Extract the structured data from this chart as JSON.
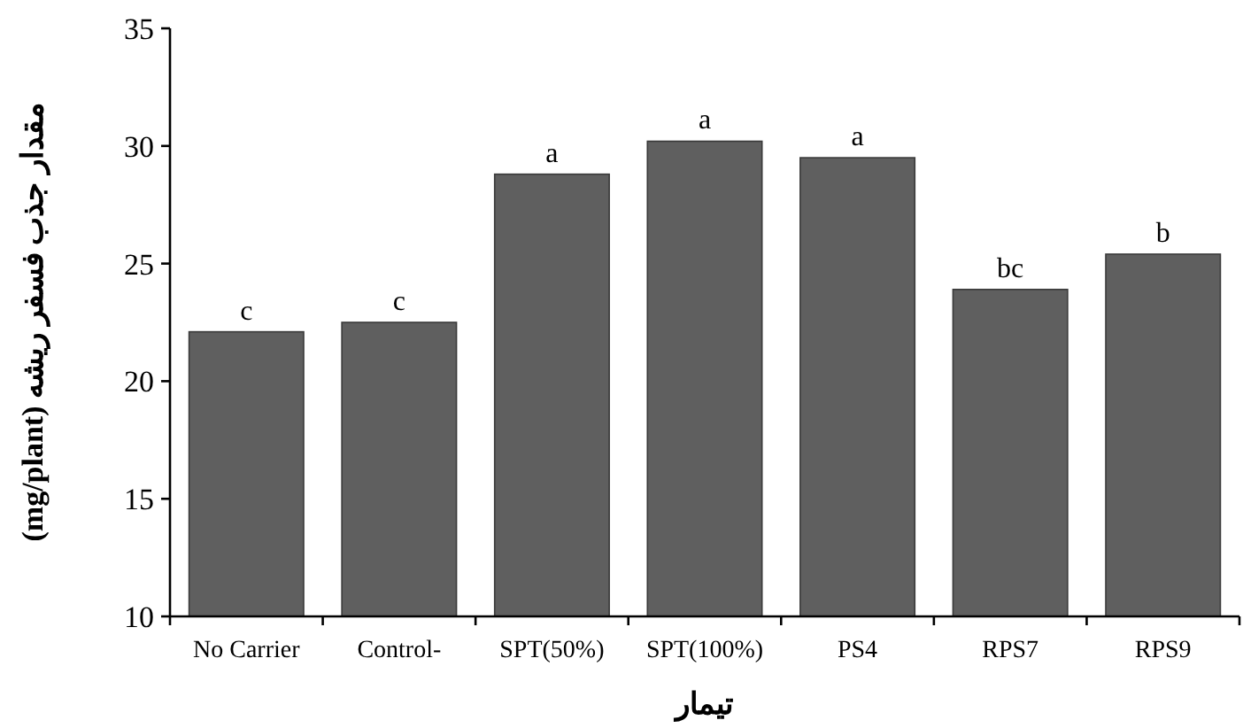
{
  "chart_data": {
    "type": "bar",
    "xlabel": "تیمار",
    "ylabel": "مقدار جذب فسفر ریشه (mg/plant)",
    "categories": [
      "No Carrier",
      "Control-",
      "SPT(50%)",
      "SPT(100%)",
      "PS4",
      "RPS7",
      "RPS9"
    ],
    "values": [
      22.1,
      22.5,
      28.8,
      30.2,
      29.5,
      23.9,
      25.4
    ],
    "color": "#5f5f5f",
    "ylim": [
      10,
      35
    ],
    "yticks": [
      10,
      15,
      20,
      25,
      30,
      35
    ],
    "grid": false,
    "annotations": [
      {
        "text": "c",
        "x": "No Carrier",
        "y": 22.1
      },
      {
        "text": "c",
        "x": "Control-",
        "y": 22.5
      },
      {
        "text": "a",
        "x": "SPT(50%)",
        "y": 28.8
      },
      {
        "text": "a",
        "x": "SPT(100%)",
        "y": 30.2
      },
      {
        "text": "a",
        "x": "PS4",
        "y": 29.5
      },
      {
        "text": "bc",
        "x": "RPS7",
        "y": 23.9
      },
      {
        "text": "b",
        "x": "RPS9",
        "y": 25.4
      }
    ]
  }
}
